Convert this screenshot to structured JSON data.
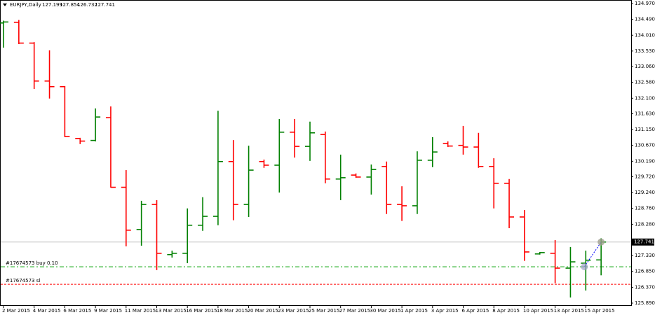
{
  "chart_data": {
    "type": "ohlc",
    "title": "EURJPY,Daily",
    "categories": [
      "2 Mar 2015",
      null,
      "4 Mar 2015",
      null,
      "6 Mar 2015",
      null,
      "9 Mar 2015",
      null,
      "11 Mar 2015",
      null,
      "13 Mar 2015",
      null,
      "16 Mar 2015",
      null,
      "18 Mar 2015",
      null,
      "20 Mar 2015",
      null,
      "23 Mar 2015",
      null,
      "25 Mar 2015",
      null,
      "27 Mar 2015",
      null,
      "30 Mar 2015",
      null,
      "1 Apr 2015",
      null,
      "3 Apr 2015",
      null,
      "6 Apr 2015",
      null,
      "8 Apr 2015",
      null,
      "10 Apr 2015",
      null,
      "13 Apr 2015",
      null,
      "15 Apr 2015",
      null
    ],
    "open": [
      134.38,
      134.4,
      133.77,
      132.62,
      132.45,
      130.88,
      130.82,
      131.51,
      129.4,
      128.12,
      128.88,
      127.36,
      127.4,
      128.25,
      128.52,
      130.18,
      128.88,
      130.18,
      130.07,
      131.07,
      130.64,
      131.0,
      129.65,
      129.77,
      129.71,
      130.03,
      128.88,
      128.84,
      130.22,
      130.73,
      130.67,
      130.62,
      130.03,
      129.52,
      128.5,
      127.38,
      127.4,
      126.95,
      127.1,
      127.199
    ],
    "high": [
      134.45,
      134.47,
      133.8,
      133.55,
      132.47,
      130.9,
      131.79,
      131.85,
      129.92,
      128.99,
      129.01,
      127.48,
      128.76,
      129.1,
      131.72,
      130.83,
      130.66,
      130.24,
      131.47,
      131.47,
      131.39,
      131.09,
      130.39,
      129.82,
      130.09,
      130.18,
      129.43,
      130.49,
      130.92,
      130.79,
      131.26,
      131.05,
      130.28,
      129.65,
      128.71,
      127.44,
      127.8,
      127.59,
      127.48,
      127.854
    ],
    "low": [
      133.63,
      133.74,
      132.38,
      132.09,
      130.92,
      130.71,
      130.79,
      129.39,
      127.61,
      127.63,
      126.89,
      127.27,
      127.1,
      128.08,
      128.25,
      128.4,
      128.5,
      129.99,
      129.24,
      130.3,
      130.2,
      129.52,
      129.01,
      129.69,
      129.18,
      128.59,
      128.38,
      128.59,
      130.01,
      130.62,
      130.39,
      129.99,
      128.76,
      128.16,
      127.17,
      127.36,
      126.49,
      126.06,
      126.27,
      126.732
    ],
    "close": [
      134.41,
      133.77,
      132.62,
      132.45,
      130.94,
      130.8,
      131.53,
      129.4,
      128.1,
      128.88,
      127.4,
      127.4,
      128.25,
      128.52,
      130.18,
      128.88,
      129.92,
      130.07,
      131.07,
      130.64,
      131.05,
      129.65,
      129.69,
      129.71,
      129.94,
      128.88,
      128.84,
      130.22,
      130.47,
      130.65,
      130.62,
      130.03,
      129.52,
      128.5,
      127.44,
      127.42,
      126.95,
      127.14,
      127.19,
      127.741
    ],
    "up_color": "#008000",
    "down_color": "#ff0000",
    "ylim": [
      125.805,
      135.055
    ],
    "yticks": [
      {
        "value": 134.97,
        "label": "134.970"
      },
      {
        "value": 134.49,
        "label": "134.490"
      },
      {
        "value": 134.01,
        "label": "134.010"
      },
      {
        "value": 133.53,
        "label": "133.530"
      },
      {
        "value": 133.06,
        "label": "133.060"
      },
      {
        "value": 132.58,
        "label": "132.580"
      },
      {
        "value": 132.1,
        "label": "132.100"
      },
      {
        "value": 131.63,
        "label": "131.630"
      },
      {
        "value": 131.15,
        "label": "131.150"
      },
      {
        "value": 130.67,
        "label": "130.670"
      },
      {
        "value": 130.19,
        "label": "130.190"
      },
      {
        "value": 129.72,
        "label": "129.720"
      },
      {
        "value": 129.24,
        "label": "129.240"
      },
      {
        "value": 128.76,
        "label": "128.760"
      },
      {
        "value": 128.28,
        "label": "128.280"
      },
      {
        "value": 127.33,
        "label": "127.330"
      },
      {
        "value": 126.85,
        "label": "126.850"
      },
      {
        "value": 126.37,
        "label": "126.370"
      },
      {
        "value": 125.89,
        "label": "125.890"
      }
    ],
    "levels": [
      {
        "label": "#17674573 buy 0.10",
        "value": 126.99,
        "color": "#00a000",
        "dash": "6 3 2 3"
      },
      {
        "label": "#17674573 sl",
        "value": 126.46,
        "color": "#ff0000",
        "dash": "3 2"
      }
    ],
    "grid": false
  }
}
